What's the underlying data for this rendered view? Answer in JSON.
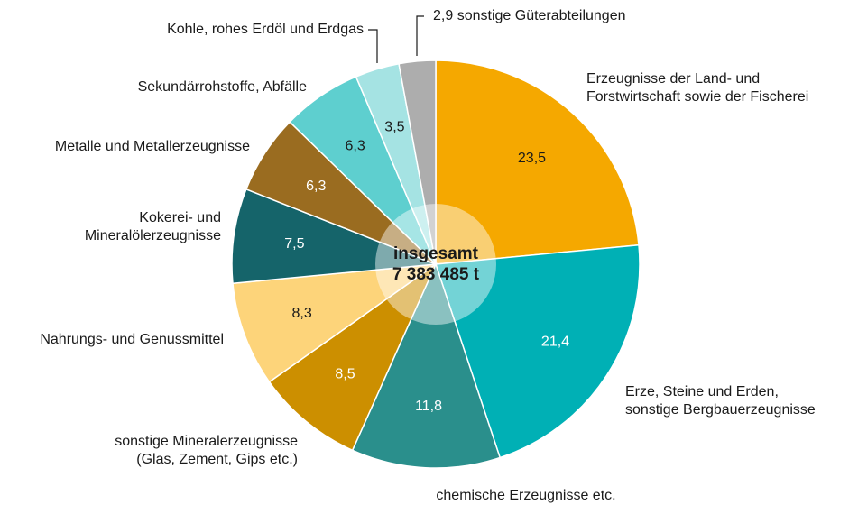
{
  "chart_data": {
    "type": "pie",
    "categories": [
      [
        "Erzeugnisse der Land- und",
        "Forstwirtschaft sowie der Fischerei"
      ],
      [
        "Erze, Steine und Erden,",
        "sonstige Bergbauerzeugnisse"
      ],
      [
        "chemische Erzeugnisse etc."
      ],
      [
        "sonstige Mineralerzeugnisse",
        "(Glas, Zement, Gips etc.)"
      ],
      [
        "Nahrungs- und Genussmittel"
      ],
      [
        "Kokerei- und",
        "Mineralölerzeugnisse"
      ],
      [
        "Metalle und Metallerzeugnisse"
      ],
      [
        "Sekundärrohstoffe, Abfälle"
      ],
      [
        "Kohle, rohes Erdöl und Erdgas"
      ],
      [
        "sonstige Güterabteilungen"
      ]
    ],
    "values": [
      23.5,
      21.4,
      11.8,
      8.5,
      8.3,
      7.5,
      6.3,
      6.3,
      3.5,
      2.9
    ],
    "value_labels": [
      "23,5",
      "21,4",
      "11,8",
      "8,5",
      "8,3",
      "7,5",
      "6,3",
      "6,3",
      "3,5",
      "2,9"
    ],
    "colors": [
      "#f5a800",
      "#00b0b5",
      "#2a8f8c",
      "#cc8f00",
      "#fdd47a",
      "#15646a",
      "#9a6c20",
      "#5ecfcf",
      "#a5e3e3",
      "#adadad"
    ],
    "center_label": [
      "insgesamt",
      "7 383 485 t"
    ]
  }
}
